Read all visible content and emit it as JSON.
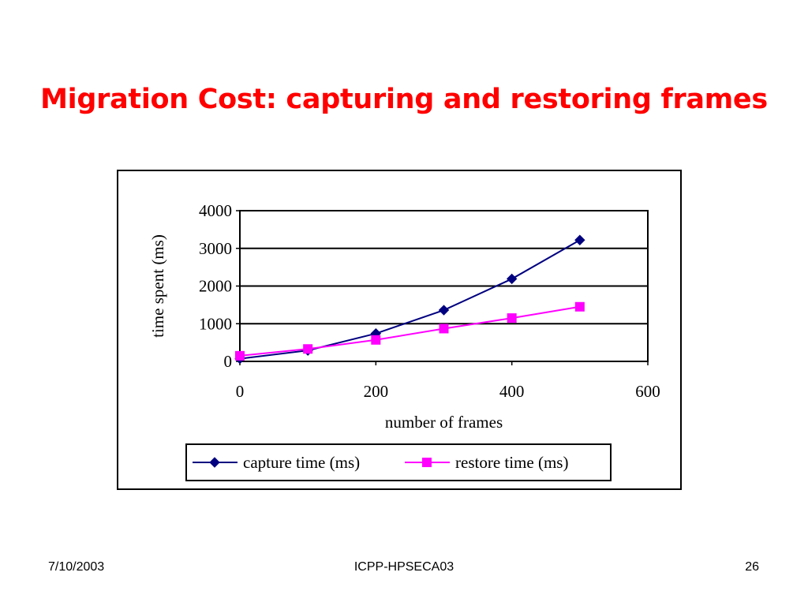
{
  "slide": {
    "title": "Migration Cost: capturing and restoring frames",
    "title_color": "#ff0000"
  },
  "footer": {
    "date": "7/10/2003",
    "center": "ICPP-HPSECA03",
    "page": "26"
  },
  "chart_data": {
    "type": "line",
    "title": "",
    "xlabel": "number of frames",
    "ylabel": "time spent (ms)",
    "xlim": [
      0,
      600
    ],
    "ylim": [
      0,
      4000
    ],
    "xticks": [
      0,
      200,
      400,
      600
    ],
    "yticks": [
      0,
      1000,
      2000,
      3000,
      4000
    ],
    "grid": "horizontal",
    "legend_position": "bottom",
    "series": [
      {
        "name": "capture time (ms)",
        "color": "#000080",
        "marker": "diamond",
        "x": [
          0,
          100,
          200,
          300,
          400,
          500
        ],
        "y": [
          70,
          290,
          740,
          1360,
          2190,
          3220
        ]
      },
      {
        "name": "restore time (ms)",
        "color": "#ff00ff",
        "marker": "square",
        "x": [
          0,
          100,
          200,
          300,
          400,
          500
        ],
        "y": [
          150,
          330,
          570,
          870,
          1150,
          1450
        ]
      }
    ]
  }
}
